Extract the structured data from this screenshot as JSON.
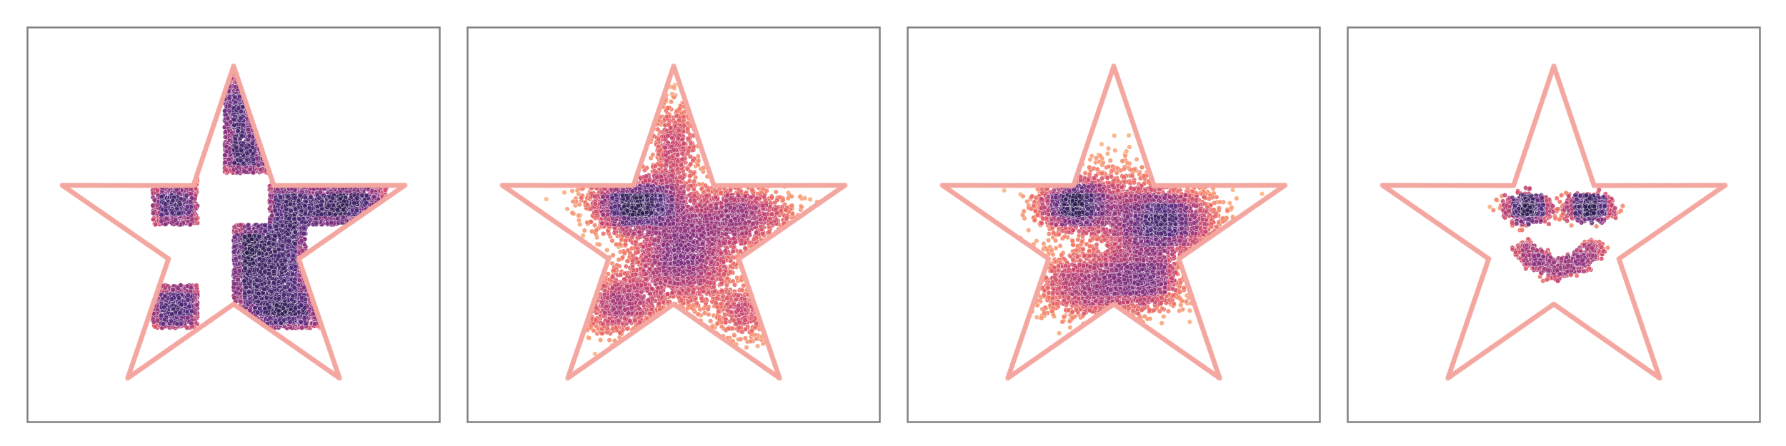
{
  "figure": {
    "panel_count": 4,
    "boundary_color": "#f4a6a0",
    "colormap": [
      "#fbb57d",
      "#f1705f",
      "#c8436d",
      "#8a2d7a",
      "#51277a",
      "#2b1a4e"
    ]
  },
  "chart_data": [
    {
      "type": "scatter",
      "title": "",
      "xlabel": "",
      "ylabel": "",
      "xlim": [
        -1.15,
        1.15
      ],
      "ylim": [
        -1.15,
        1.15
      ],
      "grid": false,
      "legend": "none",
      "ticks": "none",
      "boundary": "star",
      "distribution": "checkerboard",
      "point_count": 6200,
      "cells": [
        {
          "x": [
            -0.45,
            -0.2
          ],
          "y": [
            0.0,
            0.35
          ]
        },
        {
          "x": [
            -0.05,
            0.2
          ],
          "y": [
            0.3,
            0.9
          ]
        },
        {
          "x": [
            0.2,
            0.85
          ],
          "y": [
            0.0,
            0.35
          ]
        },
        {
          "x": [
            0.0,
            0.4
          ],
          "y": [
            -0.6,
            0.0
          ]
        },
        {
          "x": [
            -0.45,
            -0.2
          ],
          "y": [
            -0.6,
            -0.35
          ]
        },
        {
          "x": [
            0.4,
            0.55
          ],
          "y": [
            -0.6,
            -0.35
          ]
        }
      ],
      "density_peaks": [
        {
          "x": -0.25,
          "y": 0.12
        },
        {
          "x": 0.18,
          "y": -0.25
        }
      ]
    },
    {
      "type": "scatter",
      "title": "",
      "xlabel": "",
      "ylabel": "",
      "xlim": [
        -1.15,
        1.15
      ],
      "ylim": [
        -1.15,
        1.15
      ],
      "grid": false,
      "legend": "none",
      "ticks": "none",
      "boundary": "star",
      "distribution": "checkerboard_to_face_step_1",
      "point_count": 6200,
      "density_peaks": [
        {
          "x": -0.18,
          "y": 0.12
        },
        {
          "x": 0.05,
          "y": -0.22
        }
      ]
    },
    {
      "type": "scatter",
      "title": "",
      "xlabel": "",
      "ylabel": "",
      "xlim": [
        -1.15,
        1.15
      ],
      "ylim": [
        -1.15,
        1.15
      ],
      "grid": false,
      "legend": "none",
      "ticks": "none",
      "boundary": "star",
      "distribution": "checkerboard_to_face_step_2",
      "point_count": 6200,
      "density_peaks": [
        {
          "x": -0.22,
          "y": 0.12
        },
        {
          "x": 0.3,
          "y": 0.02
        }
      ]
    },
    {
      "type": "scatter",
      "title": "",
      "xlabel": "",
      "ylabel": "",
      "xlim": [
        -1.15,
        1.15
      ],
      "ylim": [
        -1.15,
        1.15
      ],
      "grid": false,
      "legend": "none",
      "ticks": "none",
      "boundary": "star",
      "distribution": "smiley_face",
      "point_count": 2600,
      "eyes": [
        {
          "x": -0.15,
          "y": 0.1
        },
        {
          "x": 0.2,
          "y": 0.1
        }
      ],
      "mouth": {
        "center_x": 0.03,
        "center_y": -0.25,
        "radius": 0.22,
        "angle_range_deg": [
          200,
          340
        ]
      }
    }
  ]
}
